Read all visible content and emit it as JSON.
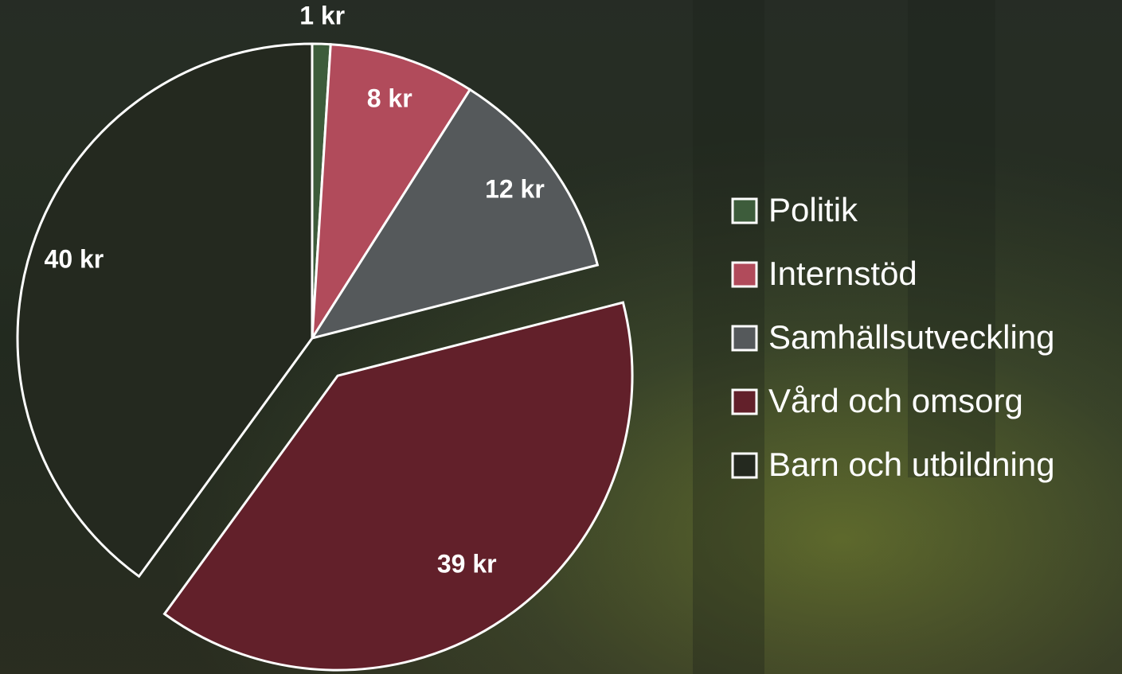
{
  "chart_data": {
    "type": "pie",
    "categories": [
      "Politik",
      "Internstöd",
      "Samhällsutveckling",
      "Vård och omsorg",
      "Barn och utbildning"
    ],
    "values": [
      1,
      8,
      12,
      39,
      40
    ],
    "value_labels": [
      "1 kr",
      "8 kr",
      "12 kr",
      "39 kr",
      "40 kr"
    ],
    "colors": [
      "#3d5c3b",
      "#b14b5b",
      "#55595b",
      "#62202a",
      "#24291f"
    ],
    "legend": "right"
  }
}
